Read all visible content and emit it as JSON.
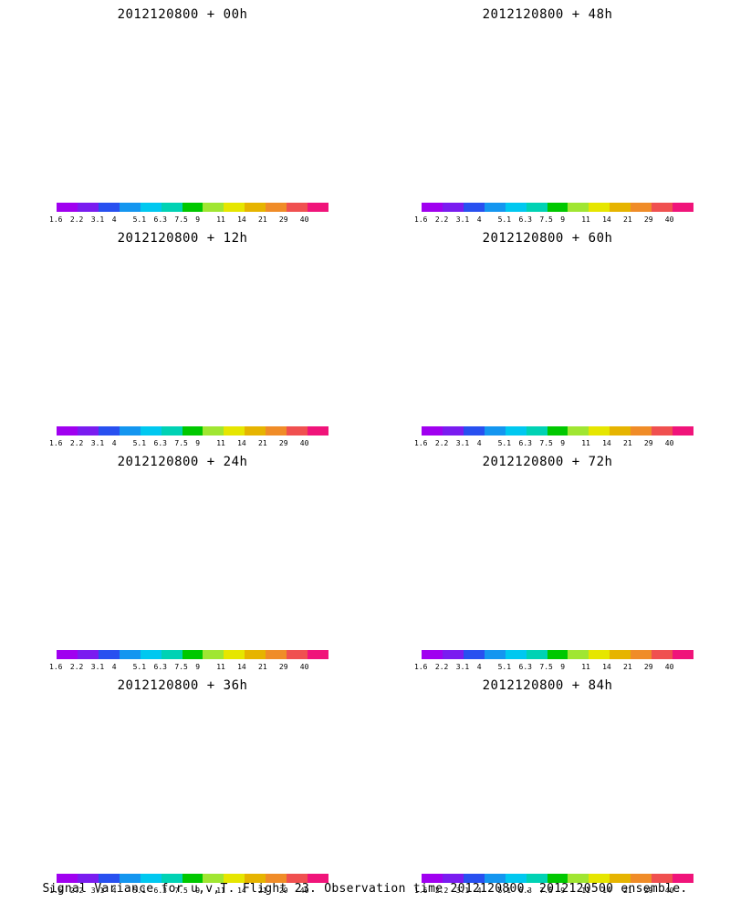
{
  "panels": [
    {
      "title": "2012120800 + 00h",
      "stage": 0
    },
    {
      "title": "2012120800 + 48h",
      "stage": 4
    },
    {
      "title": "2012120800 + 12h",
      "stage": 1
    },
    {
      "title": "2012120800 + 60h",
      "stage": 5
    },
    {
      "title": "2012120800 + 24h",
      "stage": 2
    },
    {
      "title": "2012120800 + 72h",
      "stage": 6
    },
    {
      "title": "2012120800 + 36h",
      "stage": 3
    },
    {
      "title": "2012120800 + 84h",
      "stage": 7
    }
  ],
  "colorbar": {
    "labels": [
      "1.6",
      "2.2",
      "3.1",
      "4",
      "5.1",
      "6.3",
      "7.5",
      "9",
      "11",
      "14",
      "21",
      "29",
      "40"
    ],
    "colors": [
      "#a000f0",
      "#7a1cf0",
      "#2850f0",
      "#1496f0",
      "#00c8f0",
      "#00d2b4",
      "#00c800",
      "#a0e632",
      "#e6e600",
      "#e6b400",
      "#f08c28",
      "#f05050",
      "#f0147a"
    ]
  },
  "caption": "Signal Variance for u,v,T. Flight 23. Observation time 2012120800. 2012120500 ensemble."
}
